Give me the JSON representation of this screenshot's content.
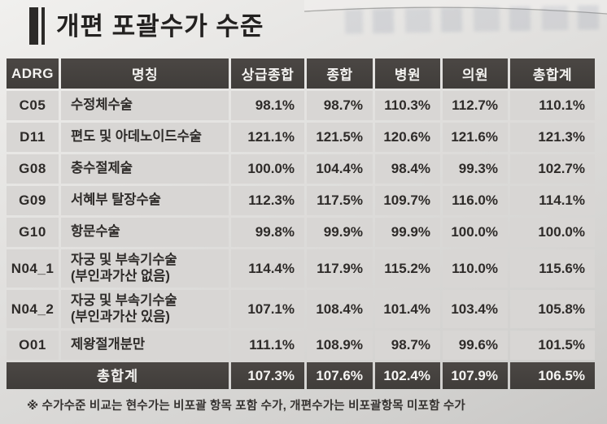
{
  "title": "개편 포괄수가 수준",
  "table": {
    "columns": [
      "ADRG",
      "명칭",
      "상급종합",
      "종합",
      "병원",
      "의원",
      "총합계"
    ],
    "rows": [
      {
        "adrg": "C05",
        "name": "수정체수술",
        "name2": "",
        "values": [
          "98.1%",
          "98.7%",
          "110.3%",
          "112.7%",
          "110.1%"
        ]
      },
      {
        "adrg": "D11",
        "name": "편도 및 아데노이드수술",
        "name2": "",
        "values": [
          "121.1%",
          "121.5%",
          "120.6%",
          "121.6%",
          "121.3%"
        ]
      },
      {
        "adrg": "G08",
        "name": "충수절제술",
        "name2": "",
        "values": [
          "100.0%",
          "104.4%",
          "98.4%",
          "99.3%",
          "102.7%"
        ]
      },
      {
        "adrg": "G09",
        "name": "서혜부 탈장수술",
        "name2": "",
        "values": [
          "112.3%",
          "117.5%",
          "109.7%",
          "116.0%",
          "114.1%"
        ]
      },
      {
        "adrg": "G10",
        "name": "항문수술",
        "name2": "",
        "values": [
          "99.8%",
          "99.9%",
          "99.9%",
          "100.0%",
          "100.0%"
        ]
      },
      {
        "adrg": "N04_1",
        "name": "자궁 및 부속기수술",
        "name2": "(부인과가산 없음)",
        "values": [
          "114.4%",
          "117.9%",
          "115.2%",
          "110.0%",
          "115.6%"
        ]
      },
      {
        "adrg": "N04_2",
        "name": "자궁 및 부속기수술",
        "name2": "(부인과가산 있음)",
        "values": [
          "107.1%",
          "108.4%",
          "101.4%",
          "103.4%",
          "105.8%"
        ]
      },
      {
        "adrg": "O01",
        "name": "제왕절개분만",
        "name2": "",
        "values": [
          "111.1%",
          "108.9%",
          "98.7%",
          "99.6%",
          "101.5%"
        ]
      }
    ],
    "total": {
      "label": "총합계",
      "values": [
        "107.3%",
        "107.6%",
        "102.4%",
        "107.9%",
        "106.5%"
      ]
    }
  },
  "footnote": "※ 수가수준 비교는 현수가는 비포괄 항목 포함 수가, 개편수가는 비포괄항목 미포함 수가",
  "colors": {
    "header_bg": "#45413e",
    "header_text": "#f4f3f1",
    "cell_bg": "#d8d6d4",
    "page_bg": "#dcdbd9",
    "body_text": "#2e2b29"
  }
}
